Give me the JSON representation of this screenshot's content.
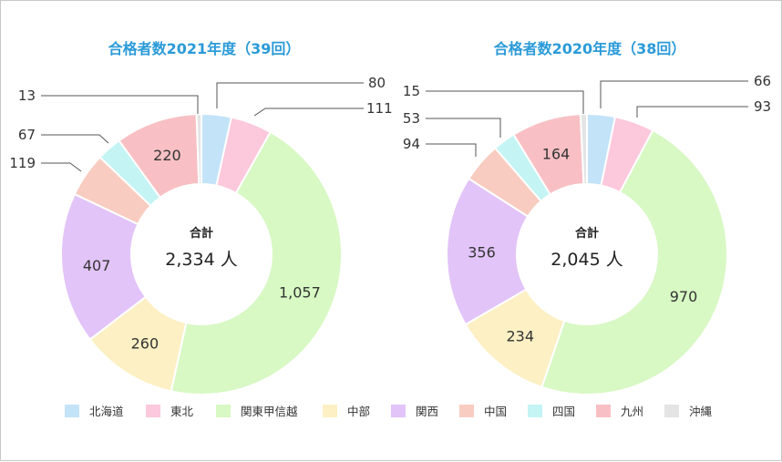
{
  "chart_data": [
    {
      "type": "donut",
      "title": "合格者数2021年度（39回）",
      "center_label": "合計",
      "total_label": "2,334 人",
      "slices": [
        {
          "name": "北海道",
          "value": 80,
          "label": "80"
        },
        {
          "name": "東北",
          "value": 111,
          "label": "111"
        },
        {
          "name": "関東甲信越",
          "value": 1057,
          "label": "1,057"
        },
        {
          "name": "中部",
          "value": 260,
          "label": "260"
        },
        {
          "name": "関西",
          "value": 407,
          "label": "407"
        },
        {
          "name": "中国",
          "value": 119,
          "label": "119"
        },
        {
          "name": "四国",
          "value": 67,
          "label": "67"
        },
        {
          "name": "九州",
          "value": 220,
          "label": "220"
        },
        {
          "name": "沖縄",
          "value": 13,
          "label": "13"
        }
      ]
    },
    {
      "type": "donut",
      "title": "合格者数2020年度（38回）",
      "center_label": "合計",
      "total_label": "2,045 人",
      "slices": [
        {
          "name": "北海道",
          "value": 66,
          "label": "66"
        },
        {
          "name": "東北",
          "value": 93,
          "label": "93"
        },
        {
          "name": "関東甲信越",
          "value": 970,
          "label": "970"
        },
        {
          "name": "中部",
          "value": 234,
          "label": "234"
        },
        {
          "name": "関西",
          "value": 356,
          "label": "356"
        },
        {
          "name": "中国",
          "value": 94,
          "label": "94"
        },
        {
          "name": "四国",
          "value": 53,
          "label": "53"
        },
        {
          "name": "九州",
          "value": 164,
          "label": "164"
        },
        {
          "name": "沖縄",
          "value": 15,
          "label": "15"
        }
      ]
    }
  ],
  "legend": [
    {
      "name": "北海道",
      "color": "#c3e3f8"
    },
    {
      "name": "東北",
      "color": "#fcc8dc"
    },
    {
      "name": "関東甲信越",
      "color": "#d8f8c4"
    },
    {
      "name": "中部",
      "color": "#fcf0c4"
    },
    {
      "name": "関西",
      "color": "#e2c4f8"
    },
    {
      "name": "中国",
      "color": "#f8ccc0"
    },
    {
      "name": "四国",
      "color": "#c4f4f4"
    },
    {
      "name": "九州",
      "color": "#f8c0c4"
    },
    {
      "name": "沖縄",
      "color": "#e4e4e4"
    }
  ]
}
